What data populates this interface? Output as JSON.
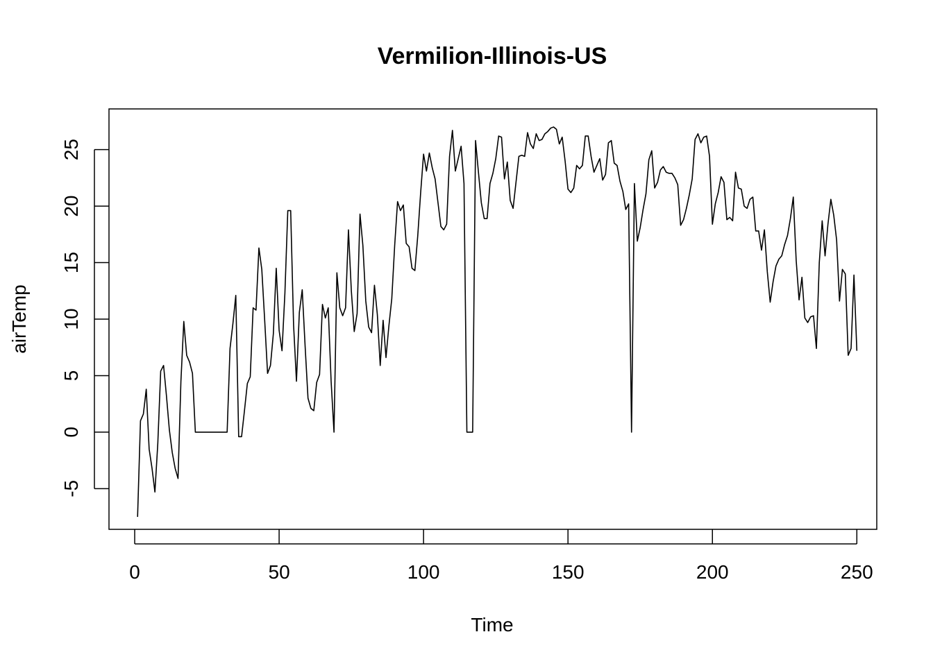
{
  "chart_data": {
    "type": "line",
    "title": "Vermilion-Illinois-US",
    "xlabel": "Time",
    "ylabel": "airTemp",
    "xlim": [
      -8.9,
      256.9
    ],
    "ylim": [
      -8.6,
      28.6
    ],
    "x_ticks": [
      0,
      50,
      100,
      150,
      200,
      250
    ],
    "y_ticks": [
      -5,
      0,
      5,
      10,
      15,
      20,
      25
    ],
    "grid": false,
    "line_color": "#000000",
    "series": [
      {
        "x_start": 1,
        "values": [
          -7.5,
          1.0,
          1.6,
          3.8,
          -1.5,
          -3.2,
          -5.3,
          -1.0,
          5.4,
          5.9,
          3.2,
          0.2,
          -1.8,
          -3.2,
          -4.1,
          4.5,
          9.8,
          6.8,
          6.2,
          5.2,
          0,
          0,
          0,
          0,
          0,
          0,
          0,
          0,
          0,
          0,
          0,
          0,
          7.4,
          9.6,
          12.1,
          -0.4,
          -0.4,
          1.9,
          4.3,
          4.9,
          11.0,
          10.8,
          16.3,
          14.4,
          9.9,
          5.2,
          5.9,
          8.7,
          14.5,
          9.0,
          7.2,
          12.3,
          19.6,
          19.6,
          9.5,
          4.5,
          10.6,
          12.6,
          7.6,
          3.0,
          2.1,
          1.9,
          4.4,
          5.1,
          11.3,
          10.1,
          11.0,
          4.5,
          0,
          14.1,
          11.0,
          10.3,
          11.0,
          17.9,
          12.5,
          8.9,
          10.5,
          19.3,
          16.5,
          11.6,
          9.3,
          8.8,
          13.0,
          10.4,
          5.9,
          9.9,
          6.6,
          9.4,
          11.8,
          16.5,
          20.4,
          19.6,
          20.1,
          16.7,
          16.4,
          14.5,
          14.3,
          17.4,
          21.2,
          24.6,
          23.1,
          24.7,
          23.4,
          22.4,
          20.3,
          18.2,
          17.9,
          18.4,
          24.4,
          26.7,
          23.1,
          24.2,
          25.3,
          22.0,
          0,
          0,
          0,
          25.8,
          23.0,
          20.3,
          18.9,
          18.9,
          22.0,
          22.9,
          24.2,
          26.2,
          26.1,
          22.4,
          23.9,
          20.5,
          19.8,
          22.1,
          24.4,
          24.5,
          24.4,
          26.5,
          25.5,
          25.1,
          26.4,
          25.8,
          25.9,
          26.4,
          26.6,
          26.9,
          27.0,
          26.8,
          25.5,
          26.1,
          24.0,
          21.5,
          21.2,
          21.6,
          23.6,
          23.3,
          23.6,
          26.2,
          26.2,
          24.4,
          23.0,
          23.6,
          24.2,
          22.3,
          22.8,
          25.6,
          25.8,
          23.8,
          23.6,
          22.2,
          21.3,
          19.7,
          20.2,
          0,
          22.0,
          16.9,
          18.1,
          19.7,
          21.1,
          24.1,
          24.9,
          21.6,
          22.1,
          23.2,
          23.5,
          23.0,
          22.9,
          22.9,
          22.5,
          21.9,
          18.3,
          18.8,
          19.8,
          21.0,
          22.4,
          25.9,
          26.4,
          25.6,
          26.1,
          26.2,
          24.4,
          18.4,
          20.2,
          21.2,
          22.6,
          22.1,
          18.8,
          19.0,
          18.7,
          23.0,
          21.6,
          21.5,
          20.0,
          19.8,
          20.6,
          20.8,
          17.8,
          17.8,
          16.1,
          17.9,
          14.2,
          11.5,
          13.3,
          14.7,
          15.3,
          15.6,
          16.6,
          17.4,
          18.9,
          20.8,
          15.2,
          11.7,
          13.7,
          10.1,
          9.7,
          10.2,
          10.3,
          7.4,
          15.0,
          18.7,
          15.6,
          18.4,
          20.6,
          19.2,
          17.0,
          11.6,
          14.4,
          14.0,
          6.8,
          7.4,
          13.9,
          7.2
        ]
      }
    ]
  }
}
